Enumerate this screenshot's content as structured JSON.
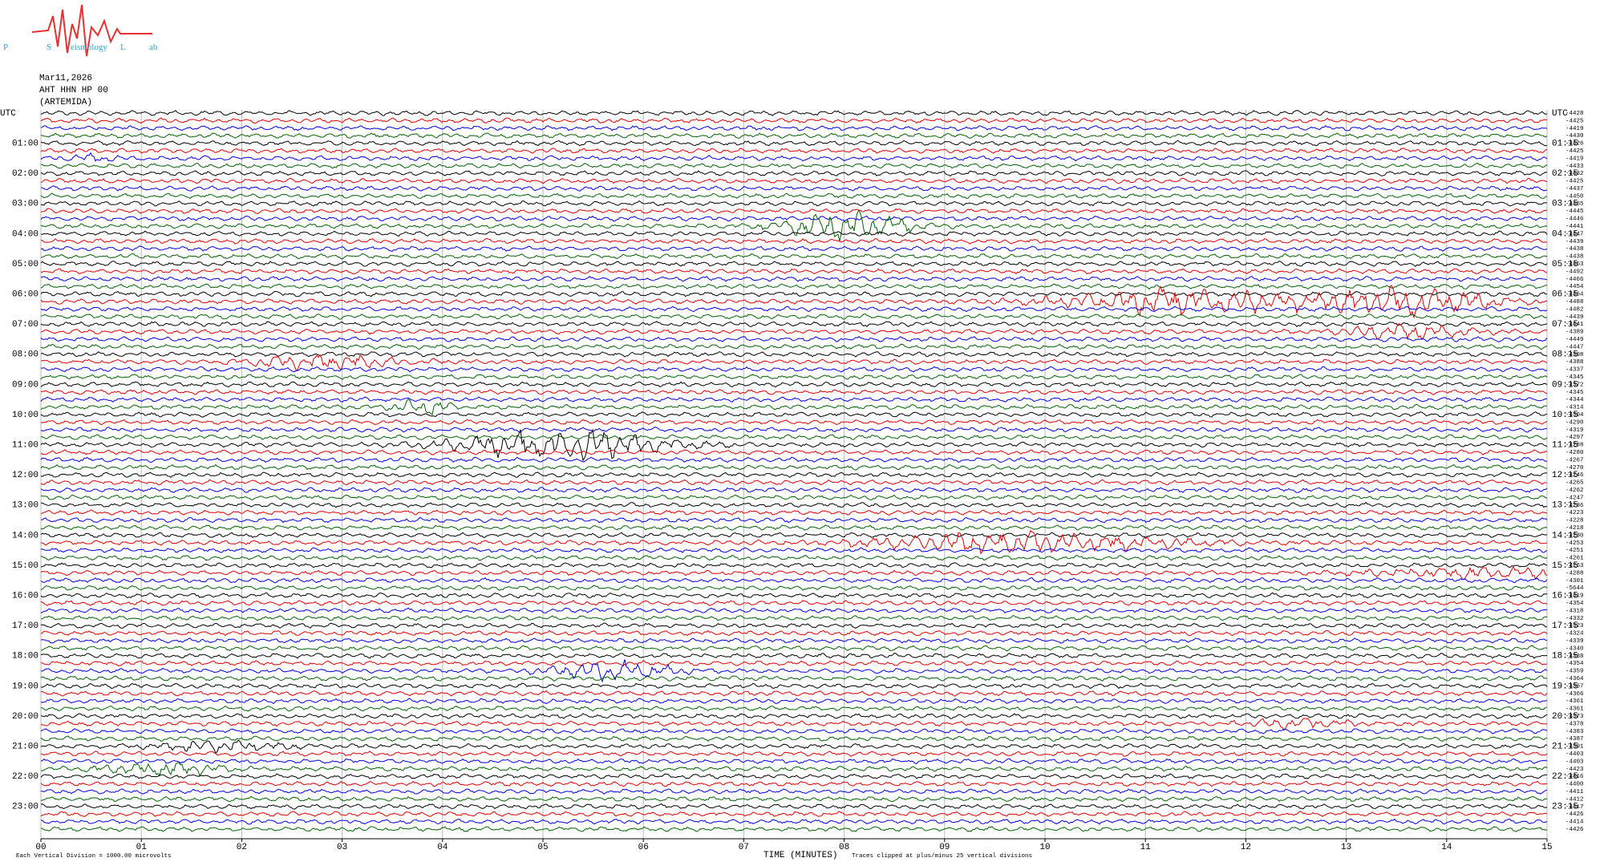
{
  "chart_data": {
    "type": "helicorder",
    "logo": {
      "letter_p": "P",
      "letter_s": "S",
      "letter_l": "L",
      "word_s": "eismology",
      "word_l": "ab"
    },
    "date": "Mar11,2026",
    "station": "AHT HHN HP 00",
    "site": "(ARTEMIDA)",
    "left_labels": [
      "UTC",
      "01:00",
      "02:00",
      "03:00",
      "04:00",
      "05:00",
      "06:00",
      "07:00",
      "08:00",
      "09:00",
      "10:00",
      "11:00",
      "12:00",
      "13:00",
      "14:00",
      "15:00",
      "16:00",
      "17:00",
      "18:00",
      "19:00",
      "20:00",
      "21:00",
      "22:00",
      "23:00"
    ],
    "right_labels": [
      "UTC",
      "01:15",
      "02:15",
      "03:15",
      "04:15",
      "05:15",
      "06:15",
      "07:15",
      "08:15",
      "09:15",
      "10:15",
      "11:15",
      "12:15",
      "13:15",
      "14:15",
      "15:15",
      "16:15",
      "17:15",
      "18:15",
      "19:15",
      "20:15",
      "21:15",
      "22:15",
      "23:15"
    ],
    "trace_offsets": [
      -4428,
      -4425,
      -4419,
      -4430,
      -4426,
      -4425,
      -4419,
      -4433,
      -4432,
      -4425,
      -4437,
      -4450,
      -4455,
      -4445,
      -4446,
      -4441,
      -4447,
      -4439,
      -4438,
      -4438,
      -4453,
      -4492,
      -4466,
      -4454,
      -4464,
      -4488,
      -4482,
      -4439,
      -4441,
      -4389,
      -4449,
      -4447,
      -4398,
      -4388,
      -4337,
      -4345,
      -4372,
      -4345,
      -4344,
      -4314,
      -4304,
      -4290,
      -4319,
      -4297,
      -4288,
      -4280,
      -4267,
      -4270,
      -4246,
      -4265,
      -4262,
      -4247,
      -4236,
      -4223,
      -4228,
      -4218,
      -4230,
      -4253,
      -4251,
      -4261,
      -4263,
      -4288,
      -4301,
      -5644,
      -4419,
      -4354,
      -4318,
      -4332,
      -4323,
      -4324,
      -4339,
      -4340,
      -4338,
      -4354,
      -4359,
      -4364,
      -4367,
      -4366,
      -4361,
      -4361,
      -4373,
      -4378,
      -4383,
      -4387,
      -4391,
      -4403,
      -4403,
      -4423,
      -4416,
      -4400,
      -4411,
      -4412,
      -4417,
      -4426,
      -4414,
      -4426
    ],
    "trace_colors": [
      "#000000",
      "#e00000",
      "#0000e0",
      "#006400"
    ],
    "xlim": [
      0,
      15
    ],
    "xticks": [
      {
        "value": 0,
        "label": "00"
      },
      {
        "value": 1,
        "label": "01"
      },
      {
        "value": 2,
        "label": "02"
      },
      {
        "value": 3,
        "label": "03"
      },
      {
        "value": 4,
        "label": "04"
      },
      {
        "value": 5,
        "label": "05"
      },
      {
        "value": 6,
        "label": "06"
      },
      {
        "value": 7,
        "label": "07"
      },
      {
        "value": 8,
        "label": "08"
      },
      {
        "value": 9,
        "label": "09"
      },
      {
        "value": 10,
        "label": "10"
      },
      {
        "value": 11,
        "label": "11"
      },
      {
        "value": 12,
        "label": "12"
      },
      {
        "value": 13,
        "label": "13"
      },
      {
        "value": 14,
        "label": "14"
      },
      {
        "value": 15,
        "label": "15"
      }
    ],
    "grid": true,
    "xlabel": "TIME (MINUTES)",
    "scale_note": "Each Vertical Division = 1000.00 microvolts",
    "clip_note": "Traces clipped at plus/minus 25 vertical divisions"
  }
}
